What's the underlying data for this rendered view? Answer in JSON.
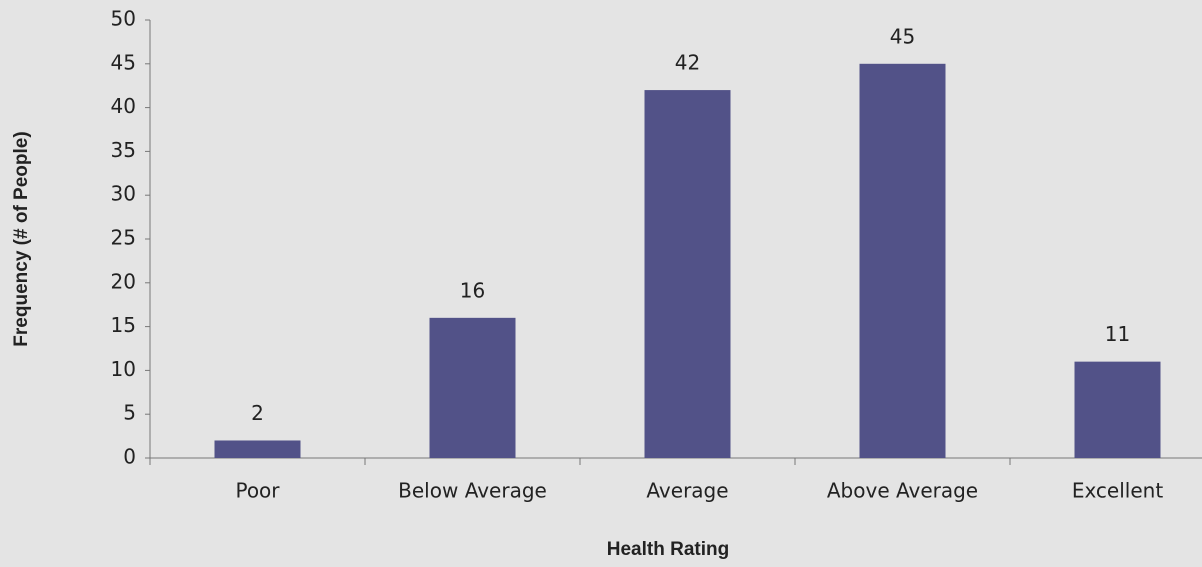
{
  "chart_data": {
    "type": "bar",
    "categories": [
      "Poor",
      "Below Average",
      "Average",
      "Above Average",
      "Excellent"
    ],
    "values": [
      2,
      16,
      42,
      45,
      11
    ],
    "color": "#525288",
    "x_label": "Health Rating",
    "y_label": "Frequency (# of People)",
    "ylim": [
      0,
      50
    ],
    "yticks": [
      0,
      5,
      10,
      15,
      20,
      25,
      30,
      35,
      40,
      45,
      50
    ],
    "grid": false,
    "data_labels": true
  }
}
